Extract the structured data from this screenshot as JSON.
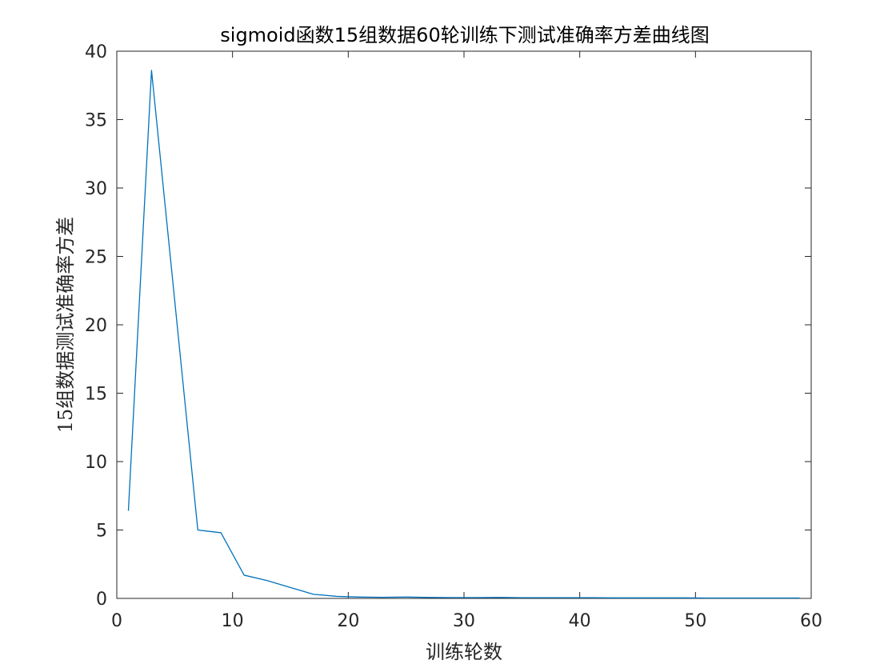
{
  "chart_data": {
    "type": "line",
    "title": "sigmoid函数15组数据60轮训练下测试准确率方差曲线图",
    "xlabel": "训练轮数",
    "ylabel": "15组数据测试准确率方差",
    "xlim": [
      0,
      60
    ],
    "ylim": [
      0,
      40
    ],
    "xticks": [
      0,
      10,
      20,
      30,
      40,
      50,
      60
    ],
    "yticks": [
      0,
      5,
      10,
      15,
      20,
      25,
      30,
      35,
      40
    ],
    "grid": false,
    "series": [
      {
        "color": "#0072BD",
        "x": [
          1,
          3,
          5,
          7,
          9,
          11,
          13,
          15,
          17,
          19,
          21,
          23,
          25,
          27,
          29,
          31,
          33,
          35,
          37,
          39,
          41,
          43,
          45,
          47,
          49,
          51,
          53,
          55,
          57,
          59
        ],
        "y": [
          6.4,
          38.6,
          21.8,
          5.0,
          4.8,
          1.7,
          1.3,
          0.8,
          0.3,
          0.15,
          0.1,
          0.08,
          0.1,
          0.07,
          0.06,
          0.06,
          0.07,
          0.05,
          0.05,
          0.05,
          0.05,
          0.04,
          0.04,
          0.04,
          0.04,
          0.03,
          0.03,
          0.03,
          0.03,
          0.03
        ]
      }
    ]
  }
}
